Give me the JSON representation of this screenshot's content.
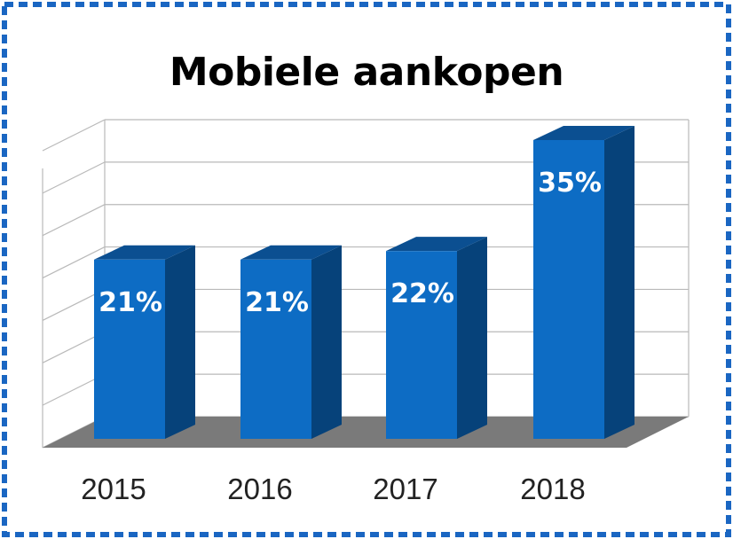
{
  "chart_data": {
    "type": "bar",
    "title": "Mobiele aankopen",
    "categories": [
      "2015",
      "2016",
      "2017",
      "2018"
    ],
    "values": [
      21,
      21,
      22,
      35
    ],
    "value_labels": [
      "21%",
      "21%",
      "22%",
      "35%"
    ],
    "unit": "%",
    "ylim": [
      0,
      35
    ],
    "grid": true,
    "legend": "none",
    "style": "3d-column",
    "colors": {
      "bar_front": "#0d6cc4",
      "bar_side": "#06427a",
      "bar_top": "#0b4f91",
      "floor": "#7a7a7a",
      "grid": "#b9b9b9",
      "border": "#1a66c2"
    }
  }
}
